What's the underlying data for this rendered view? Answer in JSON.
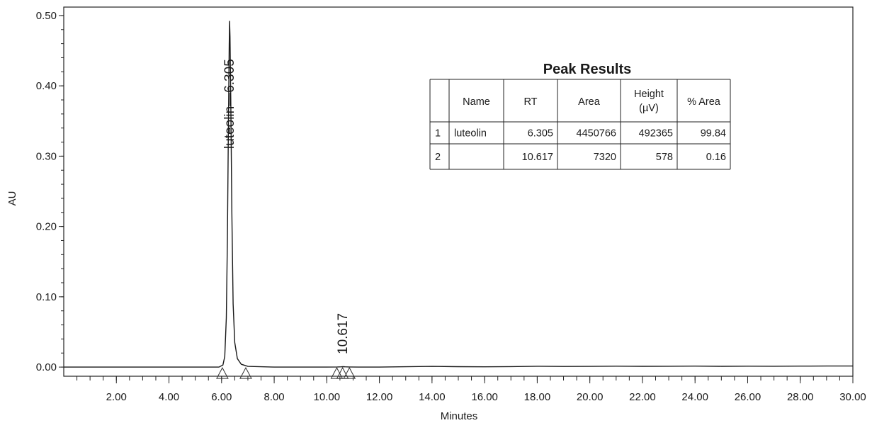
{
  "chart_data": {
    "type": "line",
    "title": "",
    "xlabel": "Minutes",
    "ylabel": "AU",
    "xlim": [
      0.0,
      30.0
    ],
    "ylim": [
      -0.013,
      0.512
    ],
    "x_ticks": [
      2.0,
      4.0,
      6.0,
      8.0,
      10.0,
      12.0,
      14.0,
      16.0,
      18.0,
      20.0,
      22.0,
      24.0,
      26.0,
      28.0,
      30.0
    ],
    "x_tick_labels": [
      "2.00",
      "4.00",
      "6.00",
      "8.00",
      "10.00",
      "12.00",
      "14.00",
      "16.00",
      "18.00",
      "20.00",
      "22.00",
      "24.00",
      "26.00",
      "28.00",
      "30.00"
    ],
    "y_ticks": [
      0.0,
      0.1,
      0.2,
      0.3,
      0.4,
      0.5
    ],
    "y_tick_labels": [
      "0.00",
      "0.10",
      "0.20",
      "0.30",
      "0.40",
      "0.50"
    ],
    "grid": false,
    "series": [
      {
        "x": [
          0.0,
          1.0,
          3.0,
          5.0,
          5.9,
          6.05,
          6.12,
          6.18,
          6.22,
          6.26,
          6.29,
          6.305,
          6.32,
          6.35,
          6.39,
          6.44,
          6.5,
          6.6,
          6.75,
          7.0,
          8.0,
          10.0,
          10.4,
          10.55,
          10.617,
          10.7,
          10.85,
          11.2,
          12.0,
          13.0,
          14.0,
          15.0,
          16.0,
          17.0,
          18.0,
          19.0,
          20.0,
          21.0,
          22.0,
          23.0,
          24.0,
          25.0,
          26.0,
          27.0,
          28.0,
          29.0,
          30.0
        ],
        "y": [
          0.0,
          0.0,
          0.0,
          0.0,
          0.0,
          0.003,
          0.015,
          0.07,
          0.18,
          0.35,
          0.46,
          0.4924,
          0.47,
          0.38,
          0.22,
          0.09,
          0.035,
          0.012,
          0.004,
          0.001,
          0.0,
          0.0,
          0.0002,
          0.0004,
          0.0006,
          0.0004,
          0.0002,
          0.0,
          0.0,
          0.0005,
          0.001,
          0.0006,
          0.0004,
          0.0007,
          0.0012,
          0.0009,
          0.001,
          0.0013,
          0.0011,
          0.0012,
          0.0014,
          0.0011,
          0.0013,
          0.0012,
          0.0014,
          0.0015,
          0.0015
        ]
      }
    ],
    "peak_labels": [
      {
        "rt": 6.305,
        "text": "luteolin—6.305"
      },
      {
        "rt": 10.617,
        "text": "10.617"
      }
    ],
    "baseline_markers": [
      6.03,
      6.92,
      10.38,
      10.6,
      10.86
    ]
  },
  "peak_table": {
    "title": "Peak Results",
    "headers": [
      "",
      "Name",
      "RT",
      "Area",
      "Height\n(µV)",
      "% Area"
    ],
    "rows": [
      [
        "1",
        "luteolin",
        "6.305",
        "4450766",
        "492365",
        "99.84"
      ],
      [
        "2",
        "",
        "10.617",
        "7320",
        "578",
        "0.16"
      ]
    ]
  }
}
